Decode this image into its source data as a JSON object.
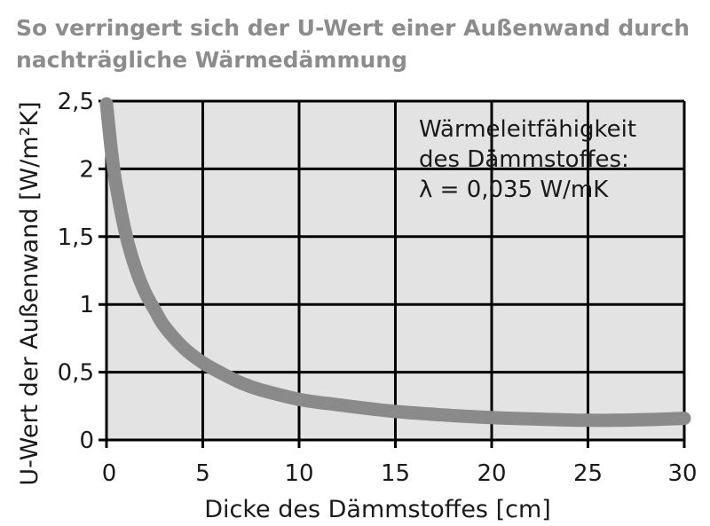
{
  "chart_data": {
    "type": "line",
    "title_lines": [
      "So verringert sich der U-Wert einer Außenwand durch",
      "nachträgliche Wärmedämmung"
    ],
    "xlabel": "Dicke des Dämmstoffes [cm]",
    "ylabel": "U-Wert der Außenwand [W/m²K]",
    "xlim": [
      0,
      30
    ],
    "ylim": [
      0,
      2.5
    ],
    "x_ticks": [
      0,
      5,
      10,
      15,
      20,
      25,
      30
    ],
    "y_ticks": [
      0,
      0.5,
      1,
      1.5,
      2,
      2.5
    ],
    "x_tick_labels": [
      "0",
      "5",
      "10",
      "15",
      "20",
      "25",
      "30"
    ],
    "y_tick_labels": [
      "0",
      "0,5",
      "1",
      "1,5",
      "2",
      "2,5"
    ],
    "grid": true,
    "annotation_lines": [
      "Wärmeleitfähigkeit",
      "des Dämmstoffes:",
      "λ = 0,035 W/mK"
    ],
    "series": [
      {
        "x": [
          0,
          0.25,
          0.5,
          1,
          1.5,
          2,
          2.5,
          3,
          4,
          5,
          6,
          7,
          8,
          10,
          12,
          15,
          18,
          20,
          22,
          25,
          28,
          30
        ],
        "y": [
          2.48,
          2.14,
          1.88,
          1.52,
          1.27,
          1.09,
          0.96,
          0.84,
          0.68,
          0.57,
          0.49,
          0.42,
          0.37,
          0.3,
          0.26,
          0.21,
          0.18,
          0.165,
          0.155,
          0.145,
          0.15,
          0.16
        ]
      }
    ],
    "colors": {
      "curve": "#8a8a8a",
      "plot_background": "#e3e3e3",
      "grid": "#000000",
      "title": "#8c8c8c"
    }
  }
}
